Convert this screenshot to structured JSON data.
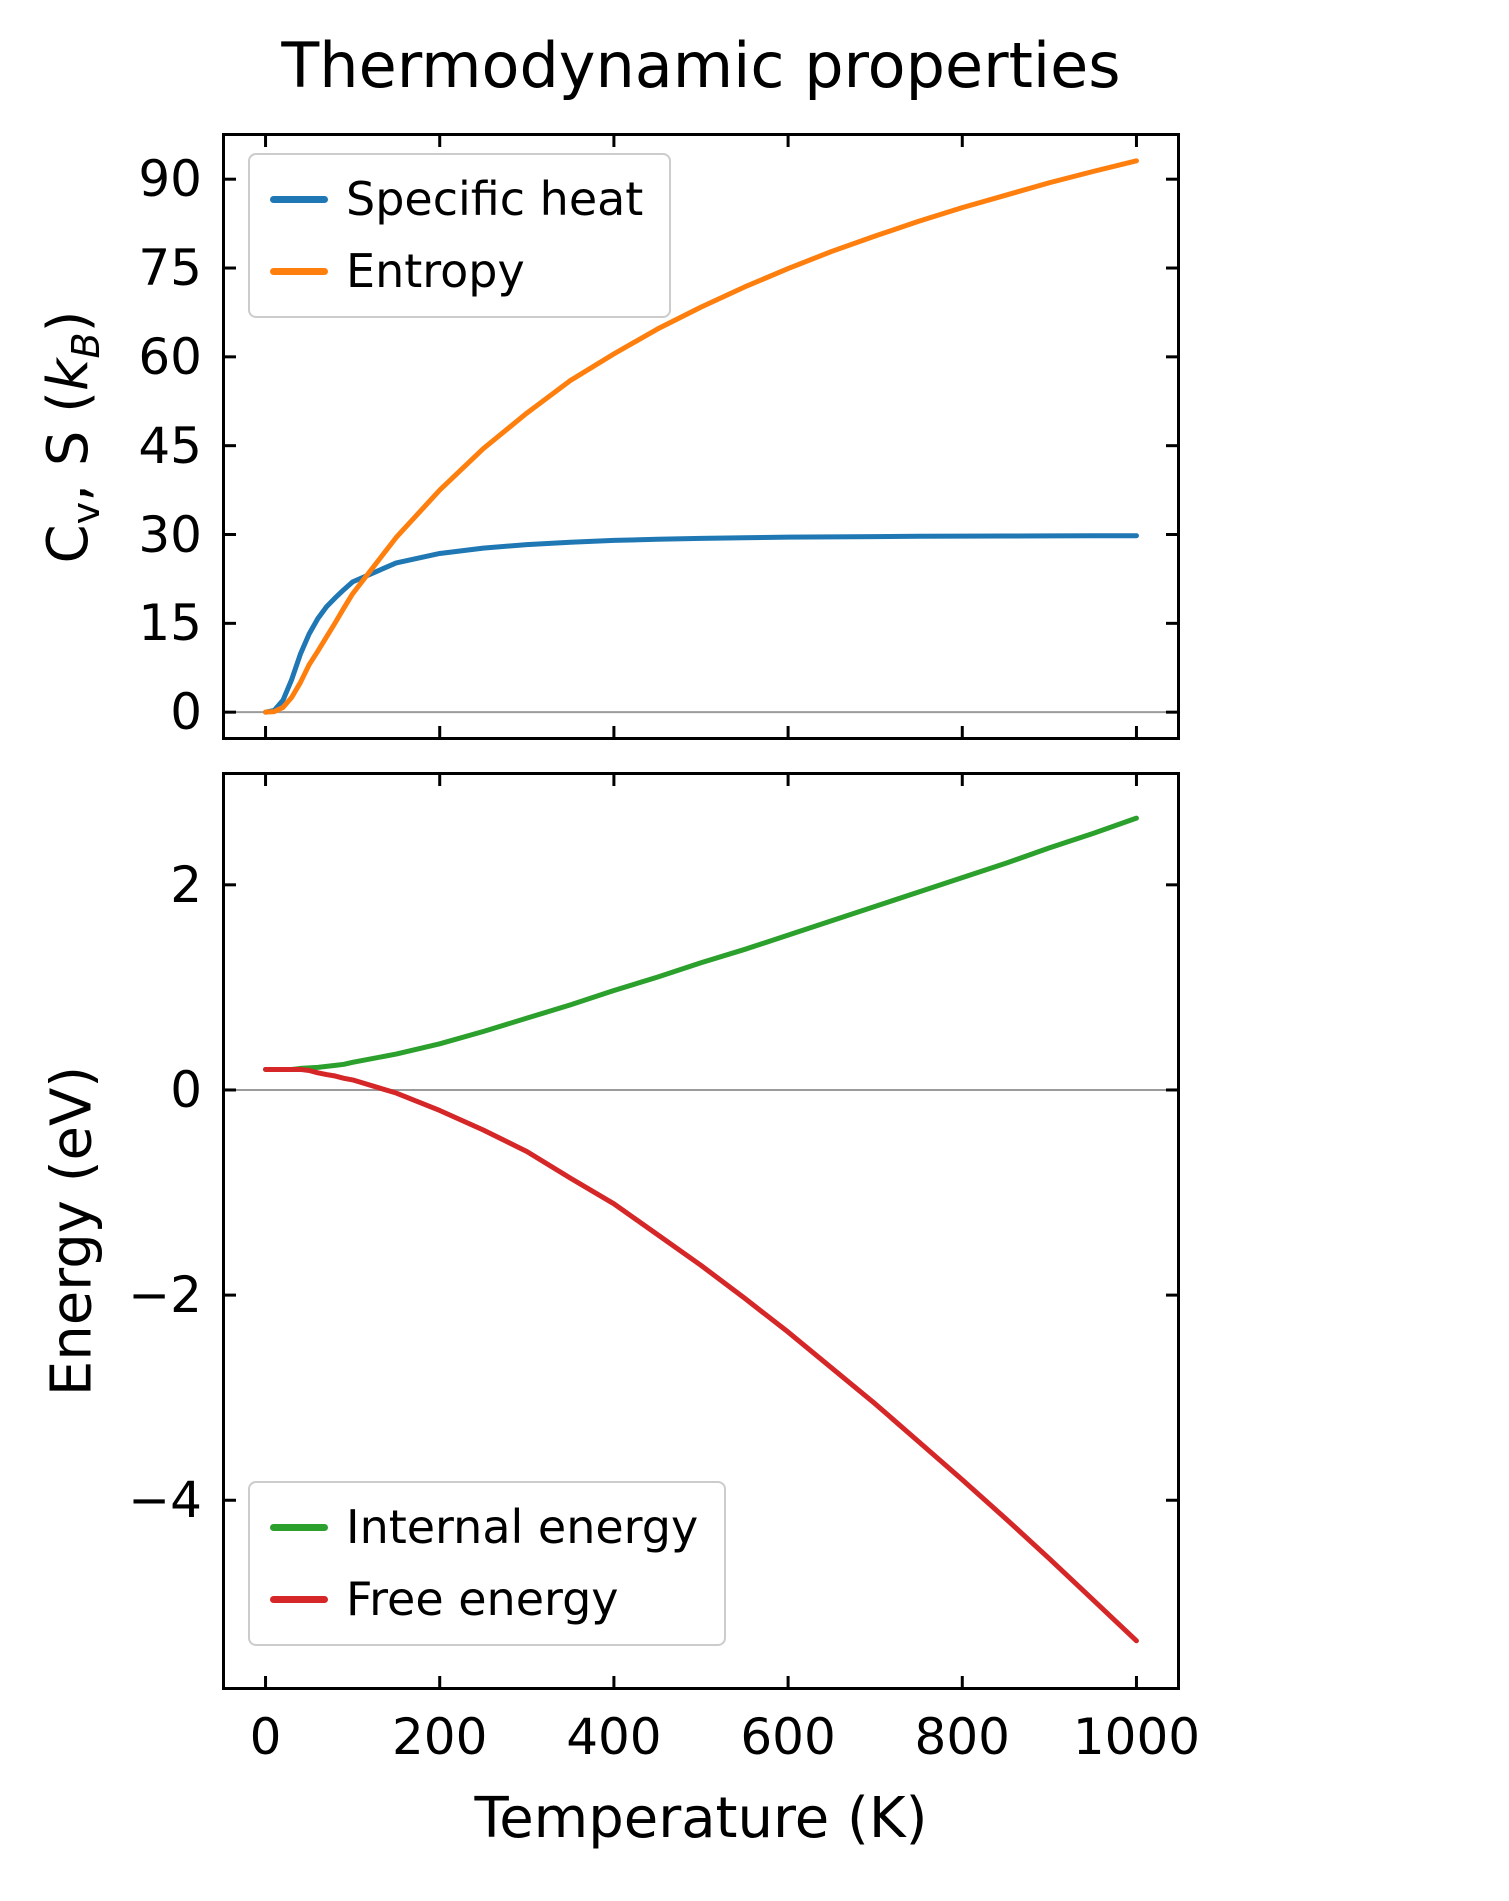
{
  "figure": {
    "title": "Thermodynamic properties",
    "background": "#ffffff",
    "frame_color": "#000000",
    "zero_line_color": "#9b9b9b"
  },
  "chart_data": [
    {
      "type": "line",
      "title": "Thermodynamic properties",
      "xlabel": "",
      "ylabel": "Cv, S (kB)",
      "ylabel_rich": {
        "base": "C",
        "base_sub": "v",
        "mid": ", S (",
        "sym": "k",
        "sym_sub": "B",
        "end": ")"
      },
      "xlim": [
        -50,
        1050
      ],
      "ylim": [
        -4.7,
        97.8
      ],
      "xticks": [
        0,
        200,
        400,
        600,
        800,
        1000
      ],
      "yticks": [
        0,
        15,
        30,
        45,
        60,
        75,
        90
      ],
      "show_x_tick_labels": false,
      "zero_line": true,
      "legend_position": "upper-left",
      "x": [
        0,
        10,
        20,
        30,
        40,
        50,
        60,
        70,
        80,
        90,
        100,
        150,
        200,
        250,
        300,
        350,
        400,
        450,
        500,
        550,
        600,
        650,
        700,
        750,
        800,
        850,
        900,
        950,
        1000
      ],
      "series": [
        {
          "name": "Specific heat",
          "color": "#1f77b4",
          "values": [
            0,
            0.3,
            2.0,
            5.5,
            9.8,
            13.2,
            15.8,
            17.8,
            19.3,
            20.7,
            22.0,
            25.2,
            26.8,
            27.7,
            28.3,
            28.7,
            29.0,
            29.2,
            29.35,
            29.45,
            29.55,
            29.6,
            29.65,
            29.7,
            29.72,
            29.75,
            29.77,
            29.79,
            29.8
          ]
        },
        {
          "name": "Entropy",
          "color": "#ff7f0e",
          "values": [
            0,
            0.1,
            0.8,
            2.5,
            5.0,
            8.0,
            10.3,
            12.7,
            15.1,
            17.6,
            20.0,
            29.5,
            37.5,
            44.5,
            50.5,
            56.0,
            60.5,
            64.7,
            68.4,
            71.8,
            74.9,
            77.8,
            80.4,
            82.9,
            85.2,
            87.3,
            89.4,
            91.3,
            93.1
          ]
        }
      ]
    },
    {
      "type": "line",
      "title": "",
      "xlabel": "Temperature (K)",
      "ylabel": "Energy (eV)",
      "xlim": [
        -50,
        1050
      ],
      "ylim": [
        -5.85,
        3.1
      ],
      "xticks": [
        0,
        200,
        400,
        600,
        800,
        1000
      ],
      "yticks": [
        -4,
        -2,
        0,
        2
      ],
      "show_x_tick_labels": true,
      "zero_line": true,
      "legend_position": "lower-left",
      "x": [
        0,
        10,
        20,
        30,
        40,
        50,
        60,
        70,
        80,
        90,
        100,
        150,
        200,
        250,
        300,
        350,
        400,
        450,
        500,
        550,
        600,
        650,
        700,
        750,
        800,
        850,
        900,
        950,
        1000
      ],
      "series": [
        {
          "name": "Internal energy",
          "color": "#2ca02c",
          "values": [
            0.2,
            0.2,
            0.2,
            0.2,
            0.21,
            0.215,
            0.22,
            0.23,
            0.24,
            0.25,
            0.27,
            0.35,
            0.45,
            0.57,
            0.7,
            0.83,
            0.97,
            1.1,
            1.24,
            1.37,
            1.51,
            1.65,
            1.79,
            1.93,
            2.07,
            2.21,
            2.36,
            2.5,
            2.65
          ]
        },
        {
          "name": "Free energy",
          "color": "#d62728",
          "values": [
            0.2,
            0.2,
            0.2,
            0.2,
            0.2,
            0.19,
            0.167,
            0.15,
            0.136,
            0.114,
            0.098,
            -0.03,
            -0.2,
            -0.39,
            -0.6,
            -0.86,
            -1.11,
            -1.41,
            -1.71,
            -2.03,
            -2.36,
            -2.71,
            -3.06,
            -3.43,
            -3.8,
            -4.18,
            -4.57,
            -4.97,
            -5.37
          ]
        }
      ]
    }
  ]
}
